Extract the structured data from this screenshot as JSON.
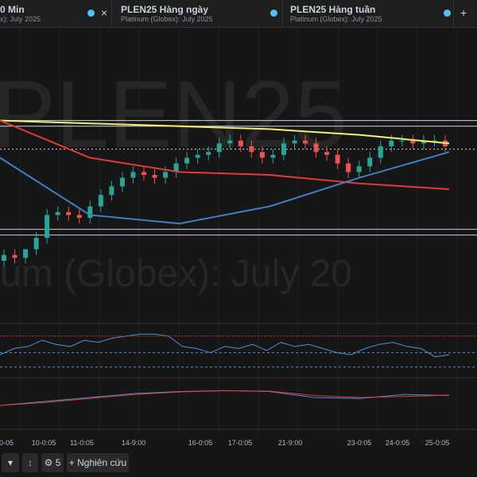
{
  "tabs": [
    {
      "title": "0 Min",
      "subtitle": "x): July 2025",
      "close": "×"
    },
    {
      "title": "PLEN25 Hàng ngày",
      "subtitle": "Platinum (Globex): July 2025"
    },
    {
      "title": "PLEN25 Hàng tuần",
      "subtitle": "Platinum (Globex): July 2025"
    }
  ],
  "add_tab": "+",
  "watermark": {
    "symbol": "PLEN25",
    "description": "um (Globex): July 20"
  },
  "chart_data": {
    "type": "candlestick",
    "ylim": [
      0,
      100
    ],
    "open": [
      20,
      22,
      21,
      24,
      28,
      36,
      37,
      36,
      35,
      39,
      43,
      46,
      49,
      51,
      50,
      49,
      51,
      54,
      56,
      57,
      58,
      61,
      62,
      60,
      58,
      56,
      57,
      61,
      62,
      61,
      58,
      57,
      54,
      51,
      53,
      56,
      60,
      62,
      62,
      61,
      62,
      62
    ],
    "high": [
      24,
      24,
      24,
      30,
      38,
      39,
      39,
      38,
      41,
      45,
      48,
      51,
      53,
      53,
      52,
      53,
      56,
      58,
      59,
      60,
      63,
      64,
      64,
      62,
      60,
      59,
      63,
      64,
      64,
      63,
      60,
      59,
      56,
      55,
      58,
      62,
      64,
      64,
      64,
      64,
      64,
      64
    ],
    "low": [
      18,
      19,
      19,
      22,
      26,
      34,
      34,
      33,
      33,
      37,
      41,
      44,
      47,
      48,
      47,
      47,
      49,
      52,
      54,
      55,
      56,
      59,
      58,
      56,
      54,
      54,
      55,
      59,
      59,
      56,
      55,
      52,
      49,
      49,
      51,
      54,
      58,
      60,
      59,
      59,
      60,
      58
    ],
    "close": [
      22,
      21,
      24,
      28,
      36,
      37,
      36,
      35,
      39,
      43,
      46,
      49,
      51,
      50,
      49,
      51,
      54,
      56,
      57,
      58,
      61,
      62,
      60,
      58,
      56,
      57,
      61,
      62,
      61,
      58,
      57,
      54,
      51,
      53,
      56,
      60,
      62,
      62,
      61,
      62,
      62,
      60
    ],
    "up_color": "#26a69a",
    "down_color": "#ef5350",
    "series": [
      {
        "color": "#f5f06a",
        "values": [
          69,
          68,
          67,
          66,
          64,
          61
        ]
      },
      {
        "color": "#e53935",
        "values": [
          69,
          56,
          51,
          50,
          47,
          45
        ]
      },
      {
        "color": "#3f7fc4",
        "values": [
          56,
          36,
          33,
          39,
          49,
          58
        ]
      }
    ],
    "levels": [
      69,
      67,
      31,
      29
    ],
    "dotted_level": 59,
    "x_labels": [
      "0-05",
      "10-0:05",
      "11-0:05",
      "14-9:00",
      "16-0:05",
      "17-0:05",
      "21-9:00",
      "23-0:05",
      "24-0:05",
      "25-0:05"
    ]
  },
  "oscillator": {
    "ylim": [
      0,
      100
    ],
    "upper": 85,
    "lines": [
      45,
      10
    ],
    "values": [
      40,
      55,
      60,
      75,
      65,
      60,
      75,
      70,
      80,
      85,
      90,
      90,
      85,
      60,
      55,
      45,
      60,
      55,
      65,
      50,
      70,
      60,
      65,
      55,
      45,
      40,
      55,
      65,
      70,
      60,
      55,
      35,
      40
    ]
  },
  "macd": {
    "ylim": [
      0,
      100
    ],
    "series": [
      {
        "color": "#4a90d9",
        "values": [
          0,
          20,
          40,
          60,
          70,
          75,
          70,
          40,
          35,
          55,
          50
        ]
      },
      {
        "color": "#e53935",
        "values": [
          0,
          15,
          35,
          55,
          68,
          74,
          72,
          50,
          40,
          45,
          52
        ]
      }
    ]
  },
  "toolbar": {
    "dropdown": "▾",
    "scale": "↕",
    "settings": "⚙ 5",
    "study": "+ Nghiên cứu"
  }
}
